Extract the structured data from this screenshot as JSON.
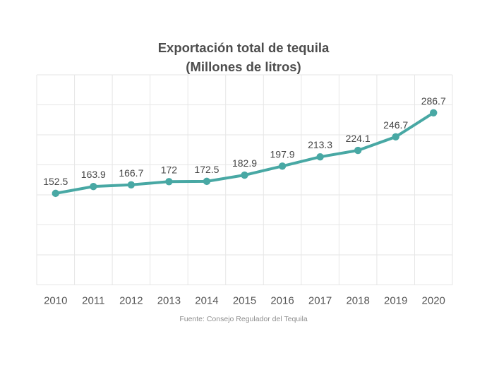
{
  "header": {
    "title": "Exportación total de tequila",
    "subtitle": "(Millones de litros)"
  },
  "chart_data": {
    "type": "line",
    "title": "Exportación total de tequila",
    "subtitle": "(Millones de litros)",
    "categories": [
      "2010",
      "2011",
      "2012",
      "2013",
      "2014",
      "2015",
      "2016",
      "2017",
      "2018",
      "2019",
      "2020"
    ],
    "series": [
      {
        "name": "Exportación total de tequila (millones de litros)",
        "values": [
          152.5,
          163.9,
          166.7,
          172,
          172.5,
          182.9,
          197.9,
          213.3,
          224.1,
          246.7,
          286.7
        ]
      }
    ],
    "value_labels": [
      "152.5",
      "163.9",
      "166.7",
      "172",
      "172.5",
      "182.9",
      "197.9",
      "213.3",
      "224.1",
      "246.7",
      "286.7"
    ],
    "xlabel": "",
    "ylabel": "",
    "ylim": [
      0,
      350
    ],
    "ytick_step": 50,
    "y_tick_labels_visible": false,
    "grid": true,
    "legend": "none",
    "source": "Fuente: Consejo Regulador del Tequila",
    "line_color": "#48a8a4",
    "marker_color": "#48a8a4",
    "grid_color": "#e6e6e6",
    "value_label_color": "#454545",
    "tick_label_color": "#555555",
    "title_color": "#4d4d4d",
    "source_color": "#8e8e8e",
    "background_color": "#ffffff"
  }
}
